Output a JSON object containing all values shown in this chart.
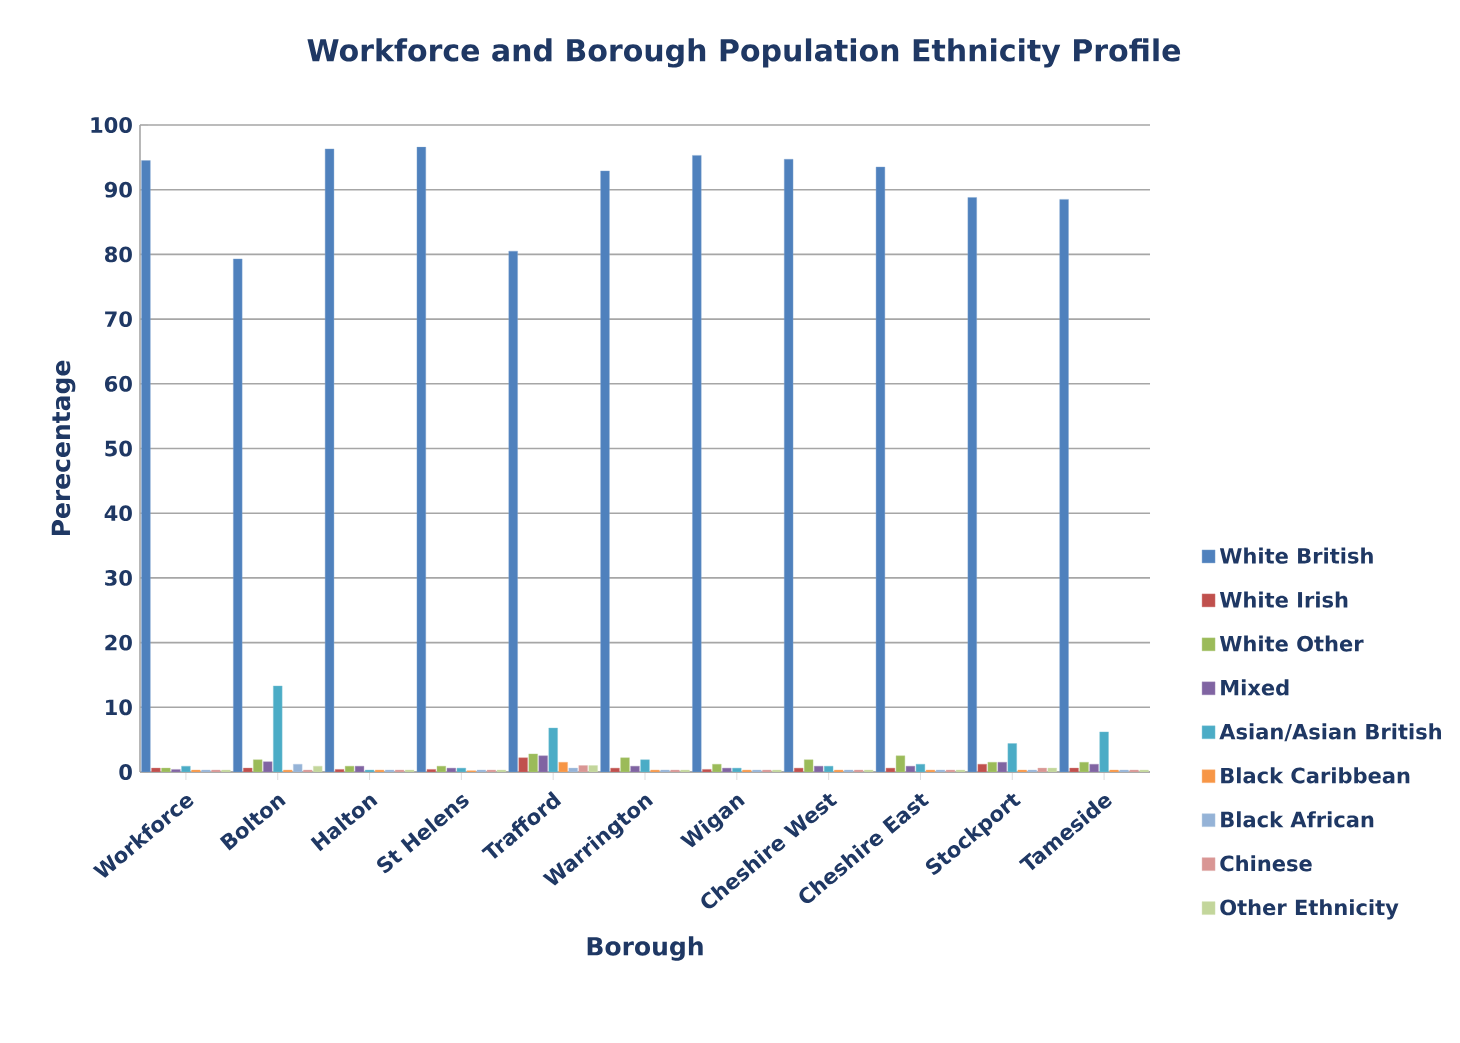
{
  "chart_data": {
    "type": "bar",
    "title": "Workforce and Borough Population Ethnicity Profile",
    "xlabel": "Borough",
    "ylabel": "Perecentage",
    "categories": [
      "Workforce",
      "Bolton",
      "Halton",
      "St Helens",
      "Trafford",
      "Warrington",
      "Wigan",
      "Cheshire West",
      "Cheshire East",
      "Stockport",
      "Tameside"
    ],
    "series": [
      {
        "name": "White British",
        "color": "#4f81bd",
        "values": [
          94.5,
          79.3,
          96.3,
          96.6,
          80.5,
          92.9,
          95.3,
          94.7,
          93.5,
          88.8,
          88.5
        ]
      },
      {
        "name": "White Irish",
        "color": "#c0504d",
        "values": [
          0.6,
          0.6,
          0.4,
          0.4,
          2.2,
          0.6,
          0.4,
          0.6,
          0.6,
          1.2,
          0.6
        ]
      },
      {
        "name": "White Other",
        "color": "#9bbb59",
        "values": [
          0.6,
          1.9,
          0.9,
          0.9,
          2.8,
          2.2,
          1.2,
          1.9,
          2.5,
          1.5,
          1.5
        ]
      },
      {
        "name": "Mixed",
        "color": "#8064a2",
        "values": [
          0.4,
          1.6,
          0.9,
          0.6,
          2.5,
          0.9,
          0.6,
          0.9,
          0.9,
          1.5,
          1.2
        ]
      },
      {
        "name": "Asian/Asian British",
        "color": "#4bacc6",
        "values": [
          0.9,
          13.3,
          0.3,
          0.6,
          6.8,
          1.9,
          0.6,
          0.9,
          1.2,
          4.4,
          6.2
        ]
      },
      {
        "name": "Black Caribbean",
        "color": "#f79646",
        "values": [
          0.3,
          0.3,
          0.3,
          0.2,
          1.5,
          0.3,
          0.3,
          0.3,
          0.3,
          0.3,
          0.3
        ]
      },
      {
        "name": "Black African",
        "color": "#95b3d7",
        "values": [
          0.3,
          1.2,
          0.3,
          0.3,
          0.6,
          0.3,
          0.3,
          0.3,
          0.3,
          0.3,
          0.3
        ]
      },
      {
        "name": "Chinese",
        "color": "#d99694",
        "values": [
          0.3,
          0.3,
          0.3,
          0.3,
          1.0,
          0.3,
          0.3,
          0.3,
          0.3,
          0.6,
          0.3
        ]
      },
      {
        "name": "Other Ethnicity",
        "color": "#c3d69b",
        "values": [
          0.3,
          0.9,
          0.3,
          0.3,
          1.0,
          0.3,
          0.3,
          0.3,
          0.3,
          0.6,
          0.3
        ]
      }
    ],
    "ylim": [
      0,
      100
    ],
    "yticks": [
      0,
      10,
      20,
      30,
      40,
      50,
      60,
      70,
      80,
      90,
      100
    ],
    "grid": "y",
    "legend": "right"
  }
}
